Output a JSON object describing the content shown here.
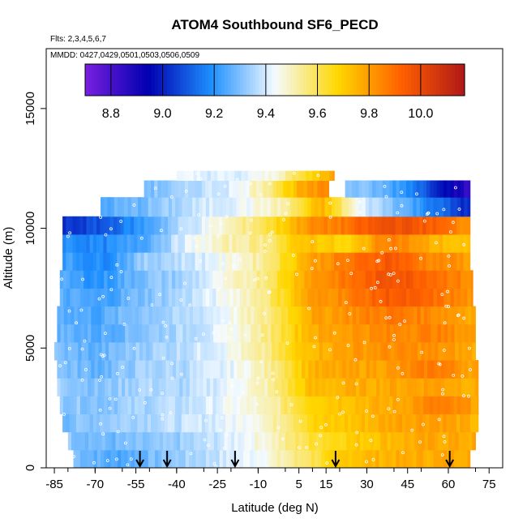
{
  "chart_data": {
    "type": "heatmap",
    "title": "ATOM4 Southbound SF6_PECD",
    "flights_note": "Flts: 2,3,4,5,6,7",
    "dates_note": "MMDD: 0427,0429,0501,0503,0506,0509",
    "xlabel": "Latitude (deg N)",
    "ylabel": "Altitude (m)",
    "xlim": [
      -88,
      80
    ],
    "ylim": [
      0,
      17500
    ],
    "x_ticks": [
      -85,
      -70,
      -55,
      -40,
      -25,
      -10,
      5,
      15,
      30,
      45,
      60,
      75
    ],
    "x_tick_labels": [
      "-85",
      "-70",
      "-55",
      "-40",
      "-25",
      "-10",
      "5",
      "15",
      "30",
      "45",
      "60",
      "75"
    ],
    "y_ticks": [
      0,
      5000,
      10000,
      15000
    ],
    "y_tick_labels": [
      "0",
      "5000",
      "10000",
      "15000"
    ],
    "colorbar": {
      "range": [
        8.7,
        10.17
      ],
      "ticks": [
        8.8,
        9.0,
        9.2,
        9.4,
        9.6,
        9.8,
        10.0
      ],
      "tick_labels": [
        "8.8",
        "9.0",
        "9.2",
        "9.4",
        "9.6",
        "9.8",
        "10.0"
      ],
      "colors": [
        "#7a1fe0",
        "#0000b0",
        "#1e90ff",
        "#f5fbff",
        "#ffd700",
        "#ff6000",
        "#b01818"
      ]
    },
    "arrow_latitudes": [
      -53.5,
      -43.5,
      -18.5,
      18.5,
      60.5
    ],
    "field_rows": [
      {
        "alt": [
          0,
          750
        ],
        "lat": [
          -78,
          68
        ],
        "values": [
          9.31,
          9.24,
          9.29,
          9.35,
          9.4,
          9.47,
          9.6,
          9.73,
          9.76,
          9.77,
          9.79
        ]
      },
      {
        "alt": [
          750,
          1500
        ],
        "lat": [
          -80,
          70
        ],
        "values": [
          9.32,
          9.28,
          9.3,
          9.34,
          9.41,
          9.49,
          9.63,
          9.7,
          9.75,
          9.78,
          9.77
        ]
      },
      {
        "alt": [
          1500,
          2250
        ],
        "lat": [
          -82,
          71
        ],
        "values": [
          9.29,
          9.33,
          9.36,
          9.38,
          9.42,
          9.5,
          9.68,
          9.72,
          9.79,
          9.81,
          9.74
        ]
      },
      {
        "alt": [
          2250,
          3000
        ],
        "lat": [
          -83,
          71
        ],
        "values": [
          9.33,
          9.31,
          9.35,
          9.37,
          9.43,
          9.49,
          9.7,
          9.74,
          9.77,
          9.86,
          9.79
        ]
      },
      {
        "alt": [
          3000,
          3750
        ],
        "lat": [
          -84,
          71
        ],
        "values": [
          9.35,
          9.3,
          9.36,
          9.35,
          9.42,
          9.51,
          9.73,
          9.76,
          9.78,
          9.8,
          9.76
        ]
      },
      {
        "alt": [
          3750,
          4500
        ],
        "lat": [
          -84,
          71
        ],
        "values": [
          9.31,
          9.27,
          9.34,
          9.36,
          9.41,
          9.52,
          9.75,
          9.78,
          9.8,
          9.88,
          9.78
        ]
      },
      {
        "alt": [
          4500,
          5250
        ],
        "lat": [
          -85,
          70
        ],
        "values": [
          9.3,
          9.26,
          9.33,
          9.37,
          9.43,
          9.53,
          9.74,
          9.8,
          9.83,
          9.82,
          9.77
        ]
      },
      {
        "alt": [
          5250,
          6000
        ],
        "lat": [
          -84,
          70
        ],
        "values": [
          9.28,
          9.25,
          9.31,
          9.36,
          9.42,
          9.55,
          9.76,
          9.81,
          9.84,
          9.86,
          9.79
        ]
      },
      {
        "alt": [
          6000,
          6750
        ],
        "lat": [
          -84,
          70
        ],
        "values": [
          9.27,
          9.24,
          9.32,
          9.35,
          9.43,
          9.54,
          9.77,
          9.83,
          9.88,
          9.84,
          9.78
        ]
      },
      {
        "alt": [
          6750,
          7500
        ],
        "lat": [
          -83,
          69
        ],
        "values": [
          9.26,
          9.22,
          9.3,
          9.36,
          9.44,
          9.56,
          9.79,
          9.86,
          9.95,
          9.9,
          9.81
        ]
      },
      {
        "alt": [
          7500,
          8250
        ],
        "lat": [
          -83,
          69
        ],
        "values": [
          9.24,
          9.2,
          9.3,
          9.34,
          9.45,
          9.57,
          9.8,
          9.88,
          9.98,
          9.92,
          9.82
        ]
      },
      {
        "alt": [
          8250,
          9000
        ],
        "lat": [
          -82,
          68
        ],
        "values": [
          9.23,
          9.18,
          9.33,
          9.38,
          9.44,
          9.55,
          9.78,
          9.87,
          9.96,
          9.85,
          9.8
        ]
      },
      {
        "alt": [
          9000,
          9750
        ],
        "lat": [
          -82,
          68
        ],
        "values": [
          9.2,
          9.17,
          9.25,
          9.41,
          9.5,
          9.56,
          9.74,
          9.66,
          9.88,
          9.76,
          9.7
        ]
      },
      {
        "alt": [
          9750,
          10500
        ],
        "lat": [
          -82,
          68
        ],
        "values": [
          9.02,
          9.09,
          9.22,
          9.37,
          9.48,
          9.61,
          9.82,
          9.88,
          9.99,
          9.94,
          9.82
        ]
      },
      {
        "alt": [
          10500,
          11300
        ],
        "lat": [
          -68,
          68
        ],
        "values": [
          9.25,
          9.28,
          9.34,
          9.4,
          9.44,
          9.52,
          9.76,
          9.42,
          9.3,
          9.16,
          9.0
        ]
      },
      {
        "alt": [
          11300,
          12000
        ],
        "lat": [
          -52,
          16
        ],
        "values": [
          9.3,
          9.32,
          9.38,
          9.42,
          9.55,
          9.75,
          9.84
        ]
      },
      {
        "alt": [
          11300,
          12000
        ],
        "lat": [
          22,
          68
        ],
        "values": [
          9.32,
          9.28,
          9.2,
          9.02,
          8.82
        ]
      },
      {
        "alt": [
          12000,
          12400
        ],
        "lat": [
          -40,
          18
        ],
        "values": [
          9.41,
          9.41,
          9.4,
          9.46,
          9.62,
          9.8
        ]
      }
    ]
  }
}
